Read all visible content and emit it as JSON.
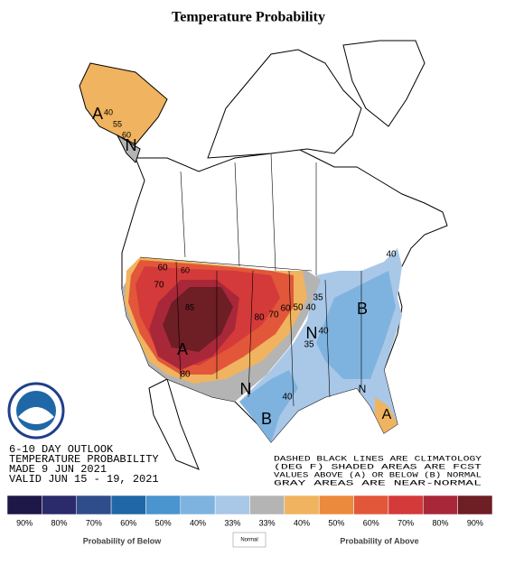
{
  "header": {
    "title": "Temperature Probability"
  },
  "map": {
    "labels": [
      "A",
      "40",
      "55",
      "60",
      "N",
      "60",
      "60",
      "70",
      "85",
      "A",
      "80",
      "80",
      "70",
      "60",
      "50",
      "40",
      "35",
      "N",
      "B",
      "40",
      "40",
      "N",
      "40",
      "B",
      "N",
      "A",
      "35"
    ]
  },
  "info": {
    "lines": [
      "6-10 DAY OUTLOOK",
      "TEMPERATURE PROBABILITY",
      "MADE  9 JUN 2021",
      "VALID  JUN 15 - 19, 2021"
    ]
  },
  "notes": {
    "lines": [
      "DASHED BLACK LINES ARE CLIMATOLOGY",
      "(DEG F) SHADED AREAS ARE FCST",
      "VALUES ABOVE (A) OR BELOW (B) NORMAL",
      "GRAY AREAS ARE NEAR-NORMAL"
    ]
  },
  "legend": {
    "items": [
      {
        "label": "90%",
        "color": "#1e1848"
      },
      {
        "label": "80%",
        "color": "#2b2b6b"
      },
      {
        "label": "70%",
        "color": "#2f4d8a"
      },
      {
        "label": "60%",
        "color": "#1f67a6"
      },
      {
        "label": "50%",
        "color": "#4a94d0"
      },
      {
        "label": "40%",
        "color": "#7fb3df"
      },
      {
        "label": "33%",
        "color": "#a9c8e8"
      },
      {
        "label": "33%",
        "color": "#b4b4b4"
      },
      {
        "label": "40%",
        "color": "#f0b35f"
      },
      {
        "label": "50%",
        "color": "#eb8a3c"
      },
      {
        "label": "60%",
        "color": "#e2573a"
      },
      {
        "label": "70%",
        "color": "#d43a3a"
      },
      {
        "label": "80%",
        "color": "#a8283a"
      },
      {
        "label": "90%",
        "color": "#6e1e25"
      }
    ],
    "below_label": "Probability of Below",
    "normal_label": "Normal",
    "above_label": "Probability of Above"
  }
}
